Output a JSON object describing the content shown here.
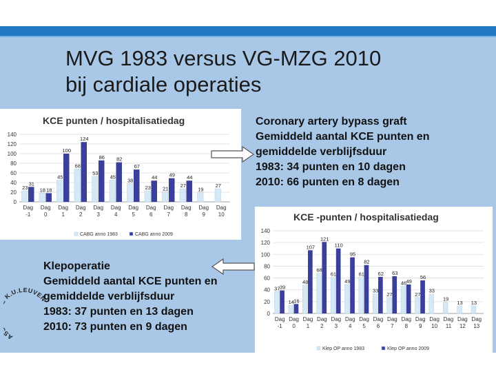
{
  "slide": {
    "title_line1": "MVG 1983 versus VG-MZG 2010",
    "title_line2": "bij cardiale operaties",
    "cabg_text": [
      "Coronary artery bypass graft",
      "Gemiddeld aantal KCE punten en",
      "gemiddelde verblijfsduur",
      "1983: 34 punten en 10 dagen",
      "2010: 66 punten en 8 dagen"
    ],
    "klep_text": [
      "Klepoperatie",
      "Gemiddeld aantal KCE punten en",
      "gemiddelde verblijfsduur",
      "1983: 37 punten en 13 dagen",
      "2010: 73 punten en 9 dagen"
    ],
    "logo_text": "ASSOCIATIE K.U.LEUVEN"
  },
  "colors": {
    "background": "#a9c8e8",
    "topbar": "#1f78c0",
    "series_1983": "#d5e8f5",
    "series_2009": "#3b3f9c"
  },
  "chart_data": [
    {
      "type": "bar",
      "title": "KCE punten / hospitalisatiedag",
      "categories": [
        "Dag -1",
        "Dag 0",
        "Dag 1",
        "Dag 2",
        "Dag 3",
        "Dag 4",
        "Dag 5",
        "Dag 6",
        "Dag 7",
        "Dag 8",
        "Dag 9",
        "Dag 10"
      ],
      "series": [
        {
          "name": "CABG anno 1983",
          "values": [
            23,
            18,
            45,
            68,
            53,
            45,
            38,
            23,
            21,
            27,
            19,
            27
          ]
        },
        {
          "name": "CABG anno 2009",
          "values": [
            31,
            18,
            100,
            124,
            86,
            82,
            67,
            44,
            49,
            44,
            null,
            null
          ]
        }
      ],
      "yticks": [
        0,
        20,
        40,
        60,
        80,
        100,
        120,
        140
      ],
      "ylim": [
        0,
        140
      ],
      "xlabel": "",
      "ylabel": "",
      "legend": "bottom"
    },
    {
      "type": "bar",
      "title": "KCE -punten / hospitalisatiedag",
      "categories": [
        "Dag -1",
        "Dag 0",
        "Dag 1",
        "Dag 2",
        "Dag 3",
        "Dag 4",
        "Dag 5",
        "Dag 6",
        "Dag 7",
        "Dag 8",
        "Dag 9",
        "Dag 10",
        "Dag 11",
        "Dag 12",
        "Dag 13"
      ],
      "series": [
        {
          "name": "Klep OP anno 1983",
          "values": [
            37,
            14,
            48,
            68,
            61,
            49,
            61,
            33,
            27,
            46,
            27,
            33,
            19,
            13,
            13
          ]
        },
        {
          "name": "Klep OP anno 2009",
          "values": [
            39,
            16,
            107,
            121,
            110,
            95,
            82,
            62,
            63,
            49,
            56,
            null,
            null,
            null,
            null
          ]
        }
      ],
      "yticks": [
        0,
        20,
        40,
        60,
        80,
        100,
        120,
        140
      ],
      "ylim": [
        0,
        140
      ],
      "xlabel": "",
      "ylabel": "",
      "legend": "bottom"
    }
  ]
}
